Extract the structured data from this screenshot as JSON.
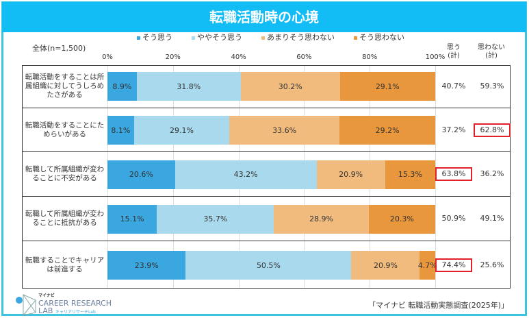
{
  "title": "転職活動時の心境",
  "total_label": "全体(n=1,500)",
  "col_agree": "思う\n(計)",
  "col_disagree": "思わない\n(計)",
  "source": "「マイナビ 転職活動実態調査(2025年)」",
  "logo": {
    "brand": "マイナビ",
    "line1": "CAREER RESEARCH",
    "line2": "LAB",
    "sub": "キャリアリサーチLab"
  },
  "chart_data": {
    "type": "bar",
    "orientation": "horizontal",
    "stacked": true,
    "xlim": [
      0,
      100
    ],
    "ticks": [
      "0%",
      "20%",
      "40%",
      "60%",
      "80%",
      "100%"
    ],
    "legend_position": "top",
    "grid": true,
    "categories": [
      "転職活動をすることは所属組織に対してうしろめたさがある",
      "転職活動をすることにためらいがある",
      "転職して所属組織が変わることに不安がある",
      "転職して所属組織が変わることに抵抗がある",
      "転職することでキャリアは前進する"
    ],
    "series": [
      {
        "name": "そう思う",
        "color": "#3aa7e0",
        "values": [
          8.9,
          8.1,
          20.6,
          15.1,
          23.9
        ]
      },
      {
        "name": "ややそう思う",
        "color": "#a9d9ec",
        "values": [
          31.8,
          29.1,
          43.2,
          35.7,
          50.5
        ]
      },
      {
        "name": "あまりそう思わない",
        "color": "#f1bb7e",
        "values": [
          30.2,
          33.6,
          20.9,
          28.9,
          20.9
        ]
      },
      {
        "name": "そう思わない",
        "color": "#e8973c",
        "values": [
          29.1,
          29.2,
          15.3,
          20.3,
          4.7
        ]
      }
    ],
    "agree_total": [
      "40.7%",
      "37.2%",
      "63.8%",
      "50.9%",
      "74.4%"
    ],
    "disagree_total": [
      "59.3%",
      "62.8%",
      "36.2%",
      "49.1%",
      "25.6%"
    ],
    "highlighted": [
      {
        "row": 1,
        "col": "disagree"
      },
      {
        "row": 2,
        "col": "agree"
      },
      {
        "row": 4,
        "col": "agree"
      }
    ]
  }
}
